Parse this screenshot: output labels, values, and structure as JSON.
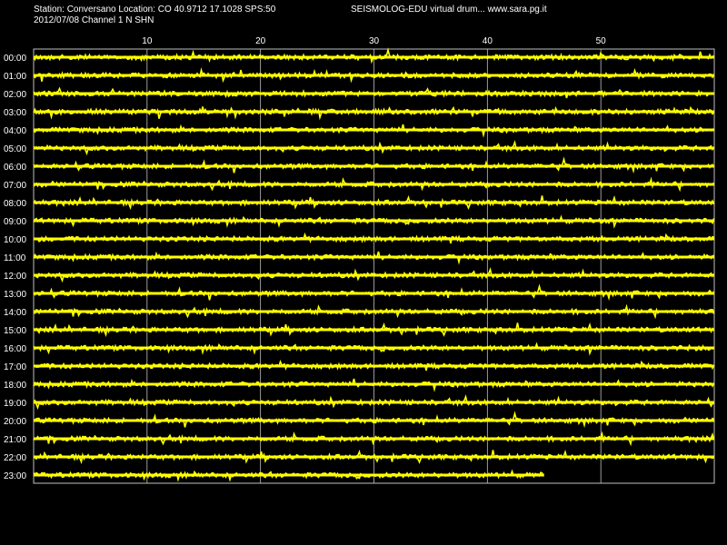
{
  "header": {
    "station_line": "Station: Conversano Location: CO 40.9712 17.1028 SPS:50",
    "date_line": "2012/07/08  Channel 1 N SHN",
    "title": "SEISMOLOG-EDU virtual drum... www.sara.pg.it"
  },
  "colors": {
    "background": "#000000",
    "trace": "#ffff00",
    "grid": "#c0c0c0",
    "text": "#ffffff"
  },
  "drum": {
    "minute_labels": [
      "10",
      "20",
      "30",
      "40",
      "50"
    ],
    "minutes_per_row": 60,
    "hour_labels": [
      "00:00",
      "01:00",
      "02:00",
      "03:00",
      "04:00",
      "05:00",
      "06:00",
      "07:00",
      "08:00",
      "09:00",
      "10:00",
      "11:00",
      "12:00",
      "13:00",
      "14:00",
      "15:00",
      "16:00",
      "17:00",
      "18:00",
      "19:00",
      "20:00",
      "21:00",
      "22:00",
      "23:00"
    ],
    "last_row_end_minute": 45
  }
}
